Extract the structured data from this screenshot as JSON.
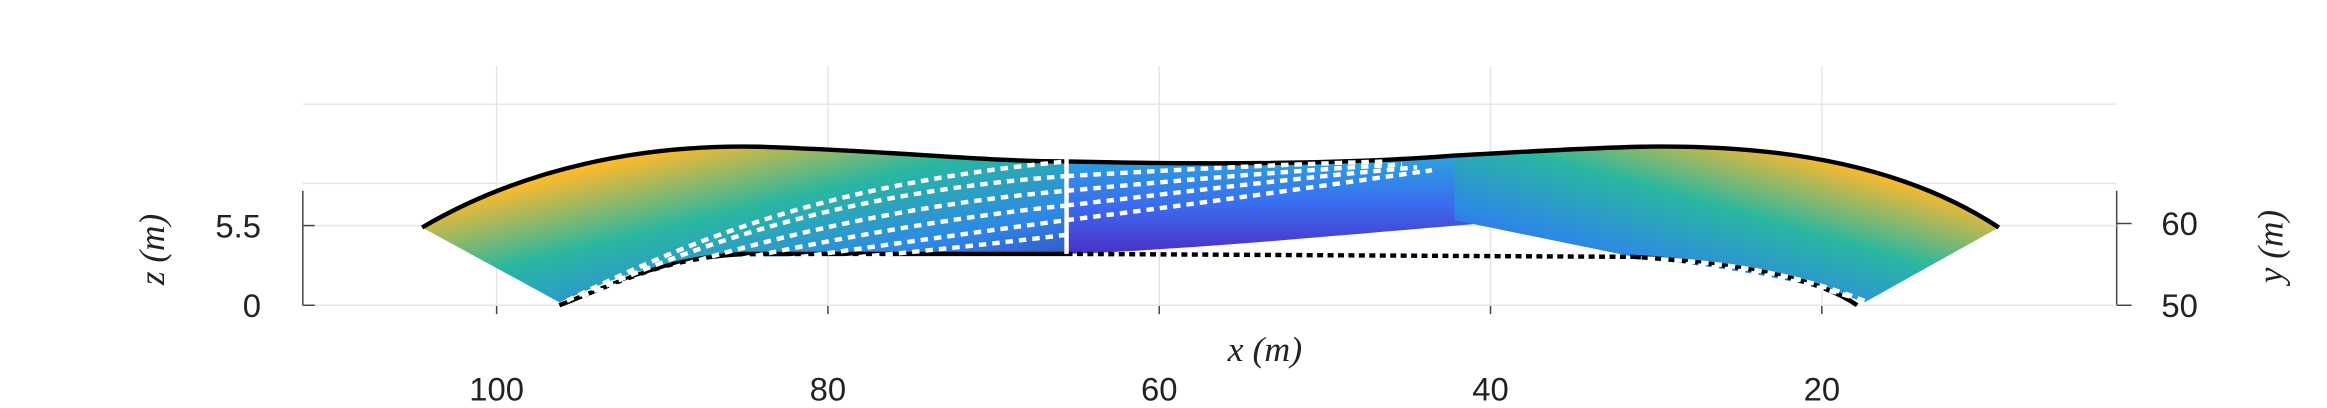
{
  "chart_data": {
    "type": "surface3d",
    "x_label": "x (m)",
    "y_label": "y (m)",
    "z_label": "z (m)",
    "xlim": [
      111.7,
      2.2
    ],
    "xticks": [
      100,
      80,
      60,
      40,
      20
    ],
    "zlim": [
      0,
      7.9
    ],
    "zticks": [
      0,
      5.5
    ],
    "ylim": [
      50,
      64
    ],
    "yticks": [
      50,
      60
    ],
    "grid": true
  }
}
